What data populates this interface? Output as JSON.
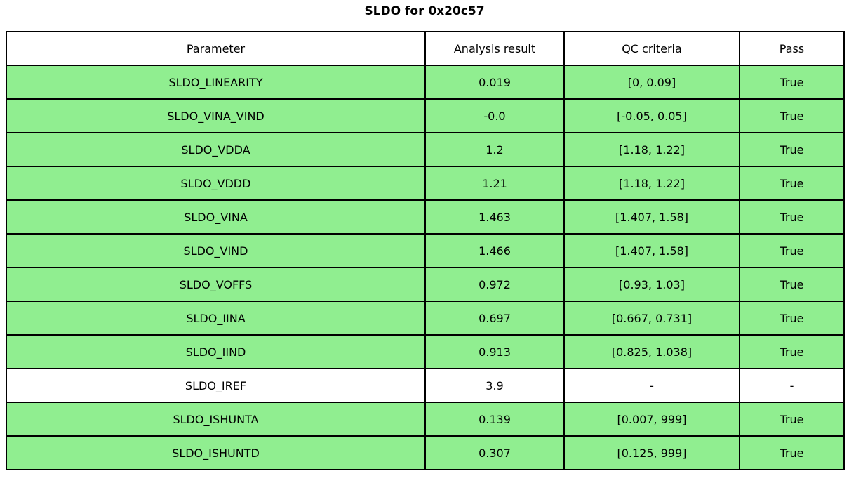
{
  "title": "SLDO for 0x20c57",
  "chart_data": {
    "type": "table",
    "title": "SLDO for 0x20c57",
    "columns": [
      "Parameter",
      "Analysis result",
      "QC criteria",
      "Pass"
    ],
    "rows": [
      [
        "SLDO_LINEARITY",
        "0.019",
        "[0, 0.09]",
        "True"
      ],
      [
        "SLDO_VINA_VIND",
        "-0.0",
        "[-0.05, 0.05]",
        "True"
      ],
      [
        "SLDO_VDDA",
        "1.2",
        "[1.18, 1.22]",
        "True"
      ],
      [
        "SLDO_VDDD",
        "1.21",
        "[1.18, 1.22]",
        "True"
      ],
      [
        "SLDO_VINA",
        "1.463",
        "[1.407, 1.58]",
        "True"
      ],
      [
        "SLDO_VIND",
        "1.466",
        "[1.407, 1.58]",
        "True"
      ],
      [
        "SLDO_VOFFS",
        "0.972",
        "[0.93, 1.03]",
        "True"
      ],
      [
        "SLDO_IINA",
        "0.697",
        "[0.667, 0.731]",
        "True"
      ],
      [
        "SLDO_IIND",
        "0.913",
        "[0.825, 1.038]",
        "True"
      ],
      [
        "SLDO_IREF",
        "3.9",
        "-",
        "-"
      ],
      [
        "SLDO_ISHUNTA",
        "0.139",
        "[0.007, 999]",
        "True"
      ],
      [
        "SLDO_ISHUNTD",
        "0.307",
        "[0.125, 999]",
        "True"
      ]
    ],
    "row_highlight": [
      true,
      true,
      true,
      true,
      true,
      true,
      true,
      true,
      true,
      false,
      true,
      true
    ],
    "layout": {
      "legend": "none",
      "grid": "cell-borders"
    }
  },
  "colors": {
    "pass_row_bg": "#90ee90",
    "neutral_row_bg": "#ffffff",
    "header_bg": "#ffffff",
    "border": "#000000",
    "text": "#000000"
  }
}
